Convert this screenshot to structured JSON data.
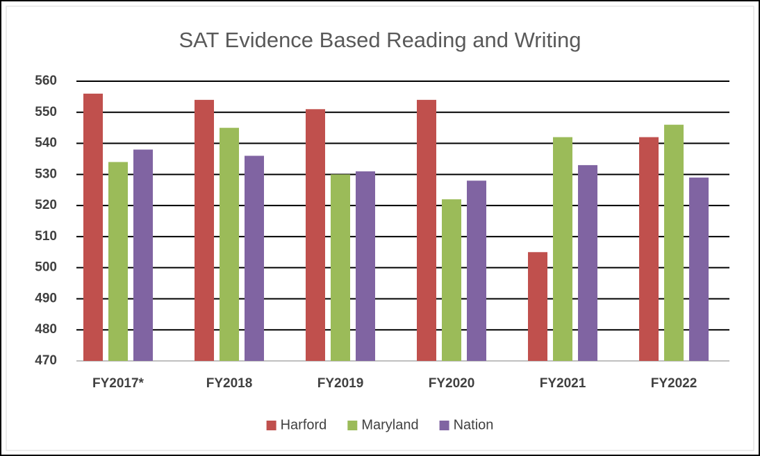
{
  "chart_data": {
    "type": "bar",
    "title": "SAT Evidence Based Reading and Writing",
    "categories": [
      "FY2017*",
      "FY2018",
      "FY2019",
      "FY2020",
      "FY2021",
      "FY2022"
    ],
    "series": [
      {
        "name": "Harford",
        "color": "#c0504d",
        "values": [
          556,
          554,
          551,
          554,
          505,
          542
        ]
      },
      {
        "name": "Maryland",
        "color": "#9bbb59",
        "values": [
          534,
          545,
          530,
          522,
          542,
          546
        ]
      },
      {
        "name": "Nation",
        "color": "#8064a2",
        "values": [
          538,
          536,
          531,
          528,
          533,
          529
        ]
      }
    ],
    "ylim": [
      470,
      560
    ],
    "yticks": [
      470,
      480,
      490,
      500,
      510,
      520,
      530,
      540,
      550,
      560
    ],
    "grid": true,
    "legend": "bottom"
  }
}
